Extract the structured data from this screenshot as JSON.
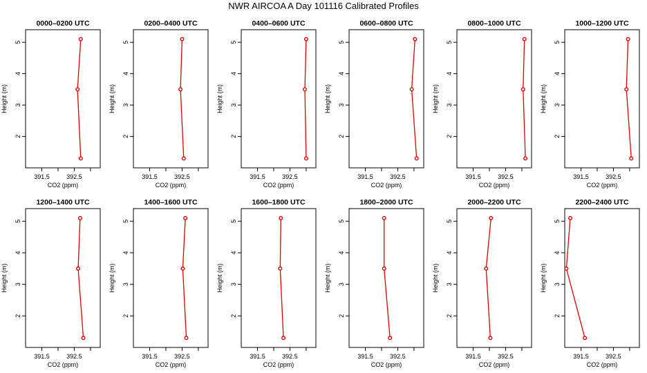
{
  "title": "NWR AIRCOA A  Day 101116  Calibrated Profiles",
  "colors": {
    "series": "#e00000",
    "axis": "#000000",
    "background": "#ffffff"
  },
  "chart_data": {
    "type": "line",
    "xlabel": "CO2 (ppm)",
    "ylabel": "Height (m)",
    "xlim": [
      391.0,
      393.3
    ],
    "ylim": [
      1.0,
      5.4
    ],
    "xticks": [
      391.5,
      392.5
    ],
    "xtick_labels": [
      "391.5",
      "392.5"
    ],
    "yticks": [
      2,
      3,
      4,
      5
    ],
    "ytick_labels": [
      "2",
      "3",
      "4",
      "5"
    ],
    "heights": [
      1.3,
      3.5,
      5.1
    ],
    "panels": [
      {
        "title": "0000–0200 UTC",
        "co2": [
          392.7,
          392.6,
          392.7
        ]
      },
      {
        "title": "0200–0400 UTC",
        "co2": [
          392.55,
          392.45,
          392.5
        ]
      },
      {
        "title": "0400–0600 UTC",
        "co2": [
          393.0,
          392.96,
          393.0
        ]
      },
      {
        "title": "0600–0800 UTC",
        "co2": [
          393.08,
          392.93,
          393.03
        ]
      },
      {
        "title": "0800–1000 UTC",
        "co2": [
          393.11,
          393.04,
          393.08
        ]
      },
      {
        "title": "1000–1200 UTC",
        "co2": [
          393.05,
          392.9,
          392.95
        ]
      },
      {
        "title": "1200–1400 UTC",
        "co2": [
          392.78,
          392.62,
          392.68
        ]
      },
      {
        "title": "1400–1600 UTC",
        "co2": [
          392.63,
          392.52,
          392.6
        ]
      },
      {
        "title": "1600–1800 UTC",
        "co2": [
          392.3,
          392.2,
          392.22
        ]
      },
      {
        "title": "1800–2000 UTC",
        "co2": [
          392.26,
          392.08,
          392.08
        ]
      },
      {
        "title": "2000–2200 UTC",
        "co2": [
          392.03,
          391.9,
          392.05
        ]
      },
      {
        "title": "2200–2400 UTC",
        "co2": [
          391.62,
          391.05,
          391.17
        ]
      }
    ]
  }
}
